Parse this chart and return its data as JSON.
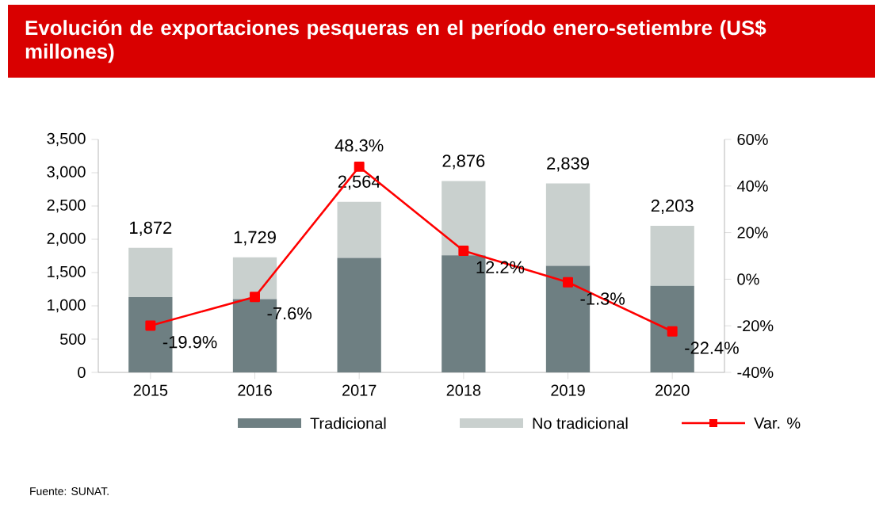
{
  "chart_data": {
    "type": "bar",
    "title": "Evolución de exportaciones pesqueras en el período enero-setiembre (US$ millones)",
    "categories": [
      "2015",
      "2016",
      "2017",
      "2018",
      "2019",
      "2020"
    ],
    "stacked": true,
    "series": [
      {
        "name": "Tradicional",
        "color": "#6e7f82",
        "values": [
          1130,
          1100,
          1720,
          1760,
          1600,
          1300
        ]
      },
      {
        "name": "No tradicional",
        "color": "#c9d0ce",
        "values": [
          742,
          629,
          844,
          1116,
          1239,
          903
        ]
      },
      {
        "name": "Var. %",
        "type": "line",
        "axis": "y2",
        "color": "#ff0000",
        "marker": "square",
        "values": [
          -19.9,
          -7.6,
          48.3,
          12.2,
          -1.3,
          -22.4
        ],
        "value_labels": [
          "-19.9%",
          "-7.6%",
          "48.3%",
          "12.2%",
          "-1.3%",
          "-22.4%"
        ]
      }
    ],
    "totals": [
      "1,872",
      "1,729",
      "2,564",
      "2,876",
      "2,839",
      "2,203"
    ],
    "ylim": [
      0,
      3500
    ],
    "yticks": [
      {
        "value": 0,
        "label": "0"
      },
      {
        "value": 500,
        "label": "500"
      },
      {
        "value": 1000,
        "label": "1,000"
      },
      {
        "value": 1500,
        "label": "1,500"
      },
      {
        "value": 2000,
        "label": "2,000"
      },
      {
        "value": 2500,
        "label": "2,500"
      },
      {
        "value": 3000,
        "label": "3,000"
      },
      {
        "value": 3500,
        "label": "3,500"
      }
    ],
    "y2lim": [
      -40,
      60
    ],
    "y2ticks": [
      {
        "value": -40,
        "label": "-40%"
      },
      {
        "value": -20,
        "label": "-20%"
      },
      {
        "value": 0,
        "label": "0%"
      },
      {
        "value": 20,
        "label": "20%"
      },
      {
        "value": 40,
        "label": "40%"
      },
      {
        "value": 60,
        "label": "60%"
      }
    ],
    "legend": "bottom",
    "annotations": [
      "Fuente: SUNAT."
    ]
  }
}
